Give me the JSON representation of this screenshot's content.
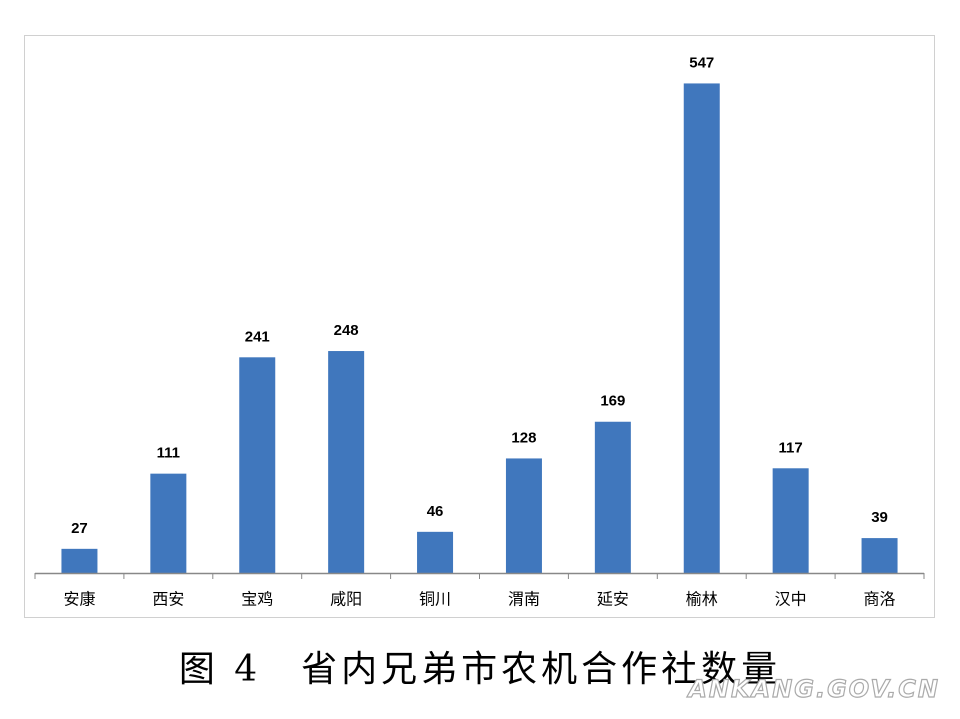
{
  "chart_data": {
    "type": "bar",
    "title": "图 4　省内兄弟市农机合作社数量",
    "watermark": "ANKANG.GOV.CN",
    "categories": [
      "安康",
      "西安",
      "宝鸡",
      "咸阳",
      "铜川",
      "渭南",
      "延安",
      "榆林",
      "汉中",
      "商洛"
    ],
    "values": [
      27,
      111,
      241,
      248,
      46,
      128,
      169,
      547,
      117,
      39
    ],
    "color": "#4077bd",
    "ylim": [
      0,
      600
    ]
  }
}
